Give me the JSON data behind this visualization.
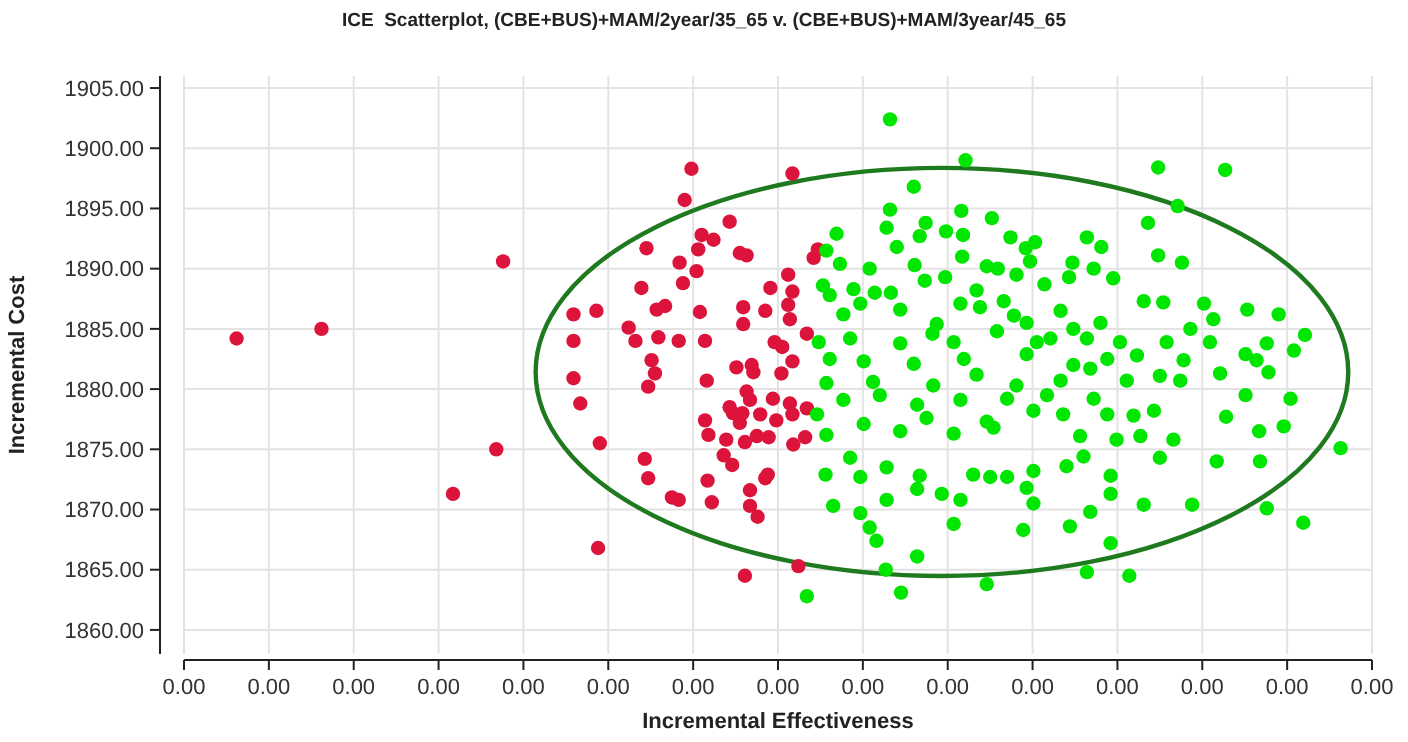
{
  "chart_data": {
    "type": "scatter",
    "title": "ICE  Scatterplot, (CBE+BUS)+MAM/2year/35_65 v. (CBE+BUS)+MAM/3year/45_65",
    "xlabel": "Incremental Effectiveness",
    "ylabel": "Incremental Cost",
    "xlim": [
      -0.0007,
      0.0007
    ],
    "xticks": [
      {
        "value": -0.0007,
        "label": "0.00"
      },
      {
        "value": -0.0006,
        "label": "0.00"
      },
      {
        "value": -0.0005,
        "label": "0.00"
      },
      {
        "value": -0.0004,
        "label": "0.00"
      },
      {
        "value": -0.0003,
        "label": "0.00"
      },
      {
        "value": -0.0002,
        "label": "0.00"
      },
      {
        "value": -0.0001,
        "label": "0.00"
      },
      {
        "value": 0,
        "label": "0.00"
      },
      {
        "value": 0.0001,
        "label": "0.00"
      },
      {
        "value": 0.0002,
        "label": "0.00"
      },
      {
        "value": 0.0003,
        "label": "0.00"
      },
      {
        "value": 0.0004,
        "label": "0.00"
      },
      {
        "value": 0.0005,
        "label": "0.00"
      },
      {
        "value": 0.0006,
        "label": "0.00"
      },
      {
        "value": 0.0007,
        "label": "0.00"
      }
    ],
    "ylim": [
      1858,
      1906
    ],
    "yticks": [
      {
        "value": 1860,
        "label": "1860.00"
      },
      {
        "value": 1865,
        "label": "1865.00"
      },
      {
        "value": 1870,
        "label": "1870.00"
      },
      {
        "value": 1875,
        "label": "1875.00"
      },
      {
        "value": 1880,
        "label": "1880.00"
      },
      {
        "value": 1885,
        "label": "1885.00"
      },
      {
        "value": 1890,
        "label": "1890.00"
      },
      {
        "value": 1895,
        "label": "1895.00"
      },
      {
        "value": 1900,
        "label": "1900.00"
      },
      {
        "value": 1905,
        "label": "1905.00"
      }
    ],
    "grid": true,
    "marker": "circle",
    "series": [
      {
        "color": "#dc143c",
        "x": [
          -0.000638,
          -0.000538,
          -0.000324,
          -0.000332,
          -0.000383,
          -0.000212,
          -0.000102,
          -0.00011,
          1.7e-05,
          -5.7e-05,
          -9e-05,
          -7.6e-05,
          -0.000155,
          -9.4e-05,
          -4.5e-05,
          -3.7e-05,
          -0.000116,
          -9.6e-05,
          -0.000112,
          -0.000161,
          -9e-06,
          1.2e-05,
          1.7e-05,
          -0.000214,
          -0.000241,
          -0.000143,
          -0.000133,
          -9.2e-05,
          -4.1e-05,
          -1.5e-05,
          1.2e-05,
          1.4e-05,
          -4.1e-05,
          -0.000176,
          -0.000168,
          -0.000141,
          -0.000117,
          -8.6e-05,
          -0.000241,
          -4e-06,
          5e-06,
          -0.000149,
          -0.000145,
          -0.000153,
          -0.000241,
          -8.4e-05,
          -4.9e-05,
          -3.1e-05,
          -2.9e-05,
          1.7e-05,
          4e-06,
          -0.000233,
          -3.7e-05,
          -3.3e-05,
          -5.7e-05,
          -5.3e-05,
          -4.2e-05,
          -6e-06,
          1.4e-05,
          -2.1e-05,
          -8.6e-05,
          -4.5e-05,
          -2e-06,
          1.7e-05,
          -8.2e-05,
          -6.1e-05,
          -3.9e-05,
          -2.5e-05,
          -1.1e-05,
          -0.00021,
          1.8e-05,
          -6.4e-05,
          -5.4e-05,
          -0.000157,
          -0.000153,
          -8.3e-05,
          -1.5e-05,
          -1.2e-05,
          -0.000125,
          -0.000117,
          -7.8e-05,
          -3.3e-05,
          -3.3e-05,
          -2.4e-05,
          -3.9e-05,
          2.4e-05,
          4.2e-05,
          4.7e-05,
          3.4e-05,
          3.4e-05,
          3.2e-05
        ],
        "values": [
          1884.2,
          1885.0,
          1890.6,
          1875.0,
          1871.3,
          1866.8,
          1898.3,
          1895.7,
          1897.9,
          1893.9,
          1892.8,
          1892.4,
          1891.7,
          1891.6,
          1891.3,
          1891.1,
          1890.5,
          1889.8,
          1888.8,
          1888.4,
          1888.4,
          1889.5,
          1888.1,
          1886.5,
          1886.2,
          1886.6,
          1886.9,
          1886.4,
          1886.8,
          1886.5,
          1887.0,
          1885.8,
          1885.4,
          1885.1,
          1884.0,
          1884.3,
          1884.0,
          1884.0,
          1884.0,
          1883.9,
          1883.5,
          1882.4,
          1881.3,
          1880.2,
          1880.9,
          1880.7,
          1881.8,
          1882.0,
          1881.4,
          1882.3,
          1881.3,
          1878.8,
          1879.8,
          1879.1,
          1878.5,
          1878.0,
          1878.0,
          1879.2,
          1878.8,
          1877.9,
          1877.4,
          1877.2,
          1877.4,
          1877.9,
          1876.2,
          1875.8,
          1875.6,
          1876.1,
          1876.0,
          1875.5,
          1875.4,
          1874.5,
          1873.7,
          1874.2,
          1872.6,
          1872.4,
          1872.6,
          1872.9,
          1871.0,
          1870.8,
          1870.6,
          1871.6,
          1870.3,
          1869.4,
          1864.5,
          1865.3,
          1890.9,
          1891.6,
          1884.6,
          1878.4,
          1876.0
        ]
      },
      {
        "color": "#00e600",
        "x": [
          0.000132,
          0.000221,
          0.000448,
          0.000527,
          0.00016,
          0.000471,
          0.000132,
          0.000216,
          0.000252,
          0.000128,
          0.000174,
          0.000198,
          0.000218,
          0.000167,
          6.9e-05,
          0.000436,
          0.000364,
          0.000381,
          0.000274,
          0.000292,
          0.000303,
          0.00014,
          5.7e-05,
          0.000217,
          0.000448,
          0.000476,
          7.3e-05,
          0.000108,
          0.000161,
          0.000246,
          0.000259,
          0.000297,
          0.000347,
          0.000343,
          0.000372,
          0.000395,
          0.000281,
          0.000173,
          0.000197,
          5.3e-05,
          8.9e-05,
          0.000114,
          0.000234,
          0.000314,
          6.1e-05,
          0.000133,
          0.000144,
          9.7e-05,
          0.000215,
          0.000238,
          0.000266,
          0.000431,
          0.000454,
          0.000502,
          0.000553,
          0.00059,
          0.000333,
          0.00038,
          0.000486,
          0.000513,
          7.7e-05,
          0.000187,
          0.000278,
          0.000293,
          0.000348,
          4.8e-05,
          8.5e-05,
          0.000144,
          0.000182,
          0.000207,
          0.000258,
          0.000305,
          0.000321,
          0.000364,
          0.000403,
          0.000458,
          0.000509,
          0.000576,
          0.000621,
          0.000608,
          6.1e-05,
          0.000101,
          0.00016,
          0.000219,
          0.000293,
          0.000348,
          0.000388,
          0.000423,
          0.000478,
          0.000551,
          0.000564,
          0.000521,
          5.7e-05,
          0.000112,
          0.000183,
          0.000234,
          0.000281,
          0.000333,
          0.000368,
          0.000411,
          0.00045,
          0.000474,
          0.000578,
          7.7e-05,
          0.00012,
          0.000164,
          0.000215,
          0.00027,
          0.000317,
          0.000372,
          0.000443,
          0.000551,
          0.000604,
          4.6e-05,
          0.000101,
          0.000175,
          0.000246,
          0.000301,
          0.000336,
          0.000388,
          0.000419,
          0.000528,
          5.7e-05,
          0.000144,
          0.000207,
          0.000254,
          0.000356,
          0.000399,
          0.000427,
          0.000466,
          0.000567,
          0.000596,
          0.000663,
          8.5e-05,
          0.000128,
          0.000167,
          0.00023,
          0.00027,
          0.000301,
          0.00034,
          0.00036,
          0.000392,
          0.00045,
          0.000517,
          0.000568,
          5.6e-05,
          9.7e-05,
          0.000164,
          0.000193,
          0.00025,
          0.000293,
          0.000392,
          6.5e-05,
          9.7e-05,
          0.000128,
          0.000215,
          0.000301,
          0.000368,
          0.000431,
          0.000488,
          0.000576,
          0.000619,
          0.000108,
          0.000207,
          0.000289,
          0.000344,
          0.000392,
          0.000116,
          0.000164,
          0.000127,
          0.000246,
          0.000364,
          0.000414,
          0.000145,
          3.4e-05
        ],
        "values": [
          1902.4,
          1899.0,
          1898.4,
          1898.2,
          1896.8,
          1895.2,
          1894.9,
          1894.8,
          1894.2,
          1893.4,
          1893.8,
          1893.1,
          1892.8,
          1892.7,
          1892.9,
          1893.8,
          1892.6,
          1891.8,
          1892.6,
          1891.7,
          1892.2,
          1891.8,
          1891.5,
          1891.0,
          1891.1,
          1890.5,
          1890.4,
          1890.0,
          1890.3,
          1890.2,
          1890.0,
          1890.6,
          1890.5,
          1889.3,
          1890.0,
          1889.2,
          1889.5,
          1889.0,
          1889.3,
          1888.6,
          1888.3,
          1888.0,
          1888.2,
          1888.7,
          1887.8,
          1888.0,
          1886.6,
          1887.1,
          1887.1,
          1886.8,
          1887.3,
          1887.3,
          1887.2,
          1887.1,
          1886.6,
          1886.2,
          1886.5,
          1885.5,
          1885.0,
          1885.8,
          1886.2,
          1885.4,
          1886.1,
          1885.5,
          1885.0,
          1883.9,
          1884.2,
          1883.8,
          1884.6,
          1883.9,
          1884.8,
          1883.9,
          1884.2,
          1884.2,
          1883.9,
          1883.9,
          1883.9,
          1883.8,
          1884.5,
          1883.2,
          1882.5,
          1882.3,
          1882.1,
          1882.5,
          1882.9,
          1882.0,
          1882.5,
          1882.8,
          1882.4,
          1882.9,
          1882.4,
          1881.3,
          1880.5,
          1880.6,
          1880.3,
          1881.2,
          1880.3,
          1880.7,
          1881.7,
          1880.7,
          1881.1,
          1880.7,
          1881.4,
          1879.1,
          1879.5,
          1878.7,
          1879.1,
          1879.2,
          1879.5,
          1879.2,
          1878.2,
          1879.5,
          1879.2,
          1877.9,
          1877.1,
          1877.6,
          1877.3,
          1878.2,
          1877.9,
          1877.9,
          1877.8,
          1877.7,
          1876.2,
          1876.5,
          1876.3,
          1876.8,
          1876.1,
          1875.8,
          1876.1,
          1875.8,
          1876.5,
          1876.9,
          1875.1,
          1874.3,
          1873.5,
          1872.8,
          1872.9,
          1872.7,
          1873.2,
          1873.6,
          1874.4,
          1872.8,
          1874.3,
          1874.0,
          1874.0,
          1872.9,
          1872.7,
          1871.7,
          1871.3,
          1872.7,
          1871.8,
          1871.3,
          1870.3,
          1869.7,
          1870.8,
          1870.8,
          1870.5,
          1869.8,
          1870.4,
          1870.4,
          1870.1,
          1868.9,
          1868.5,
          1868.8,
          1868.3,
          1868.6,
          1867.2,
          1867.4,
          1866.1,
          1865.0,
          1863.8,
          1864.8,
          1864.5,
          1863.1,
          1862.8
        ]
      }
    ]
  }
}
